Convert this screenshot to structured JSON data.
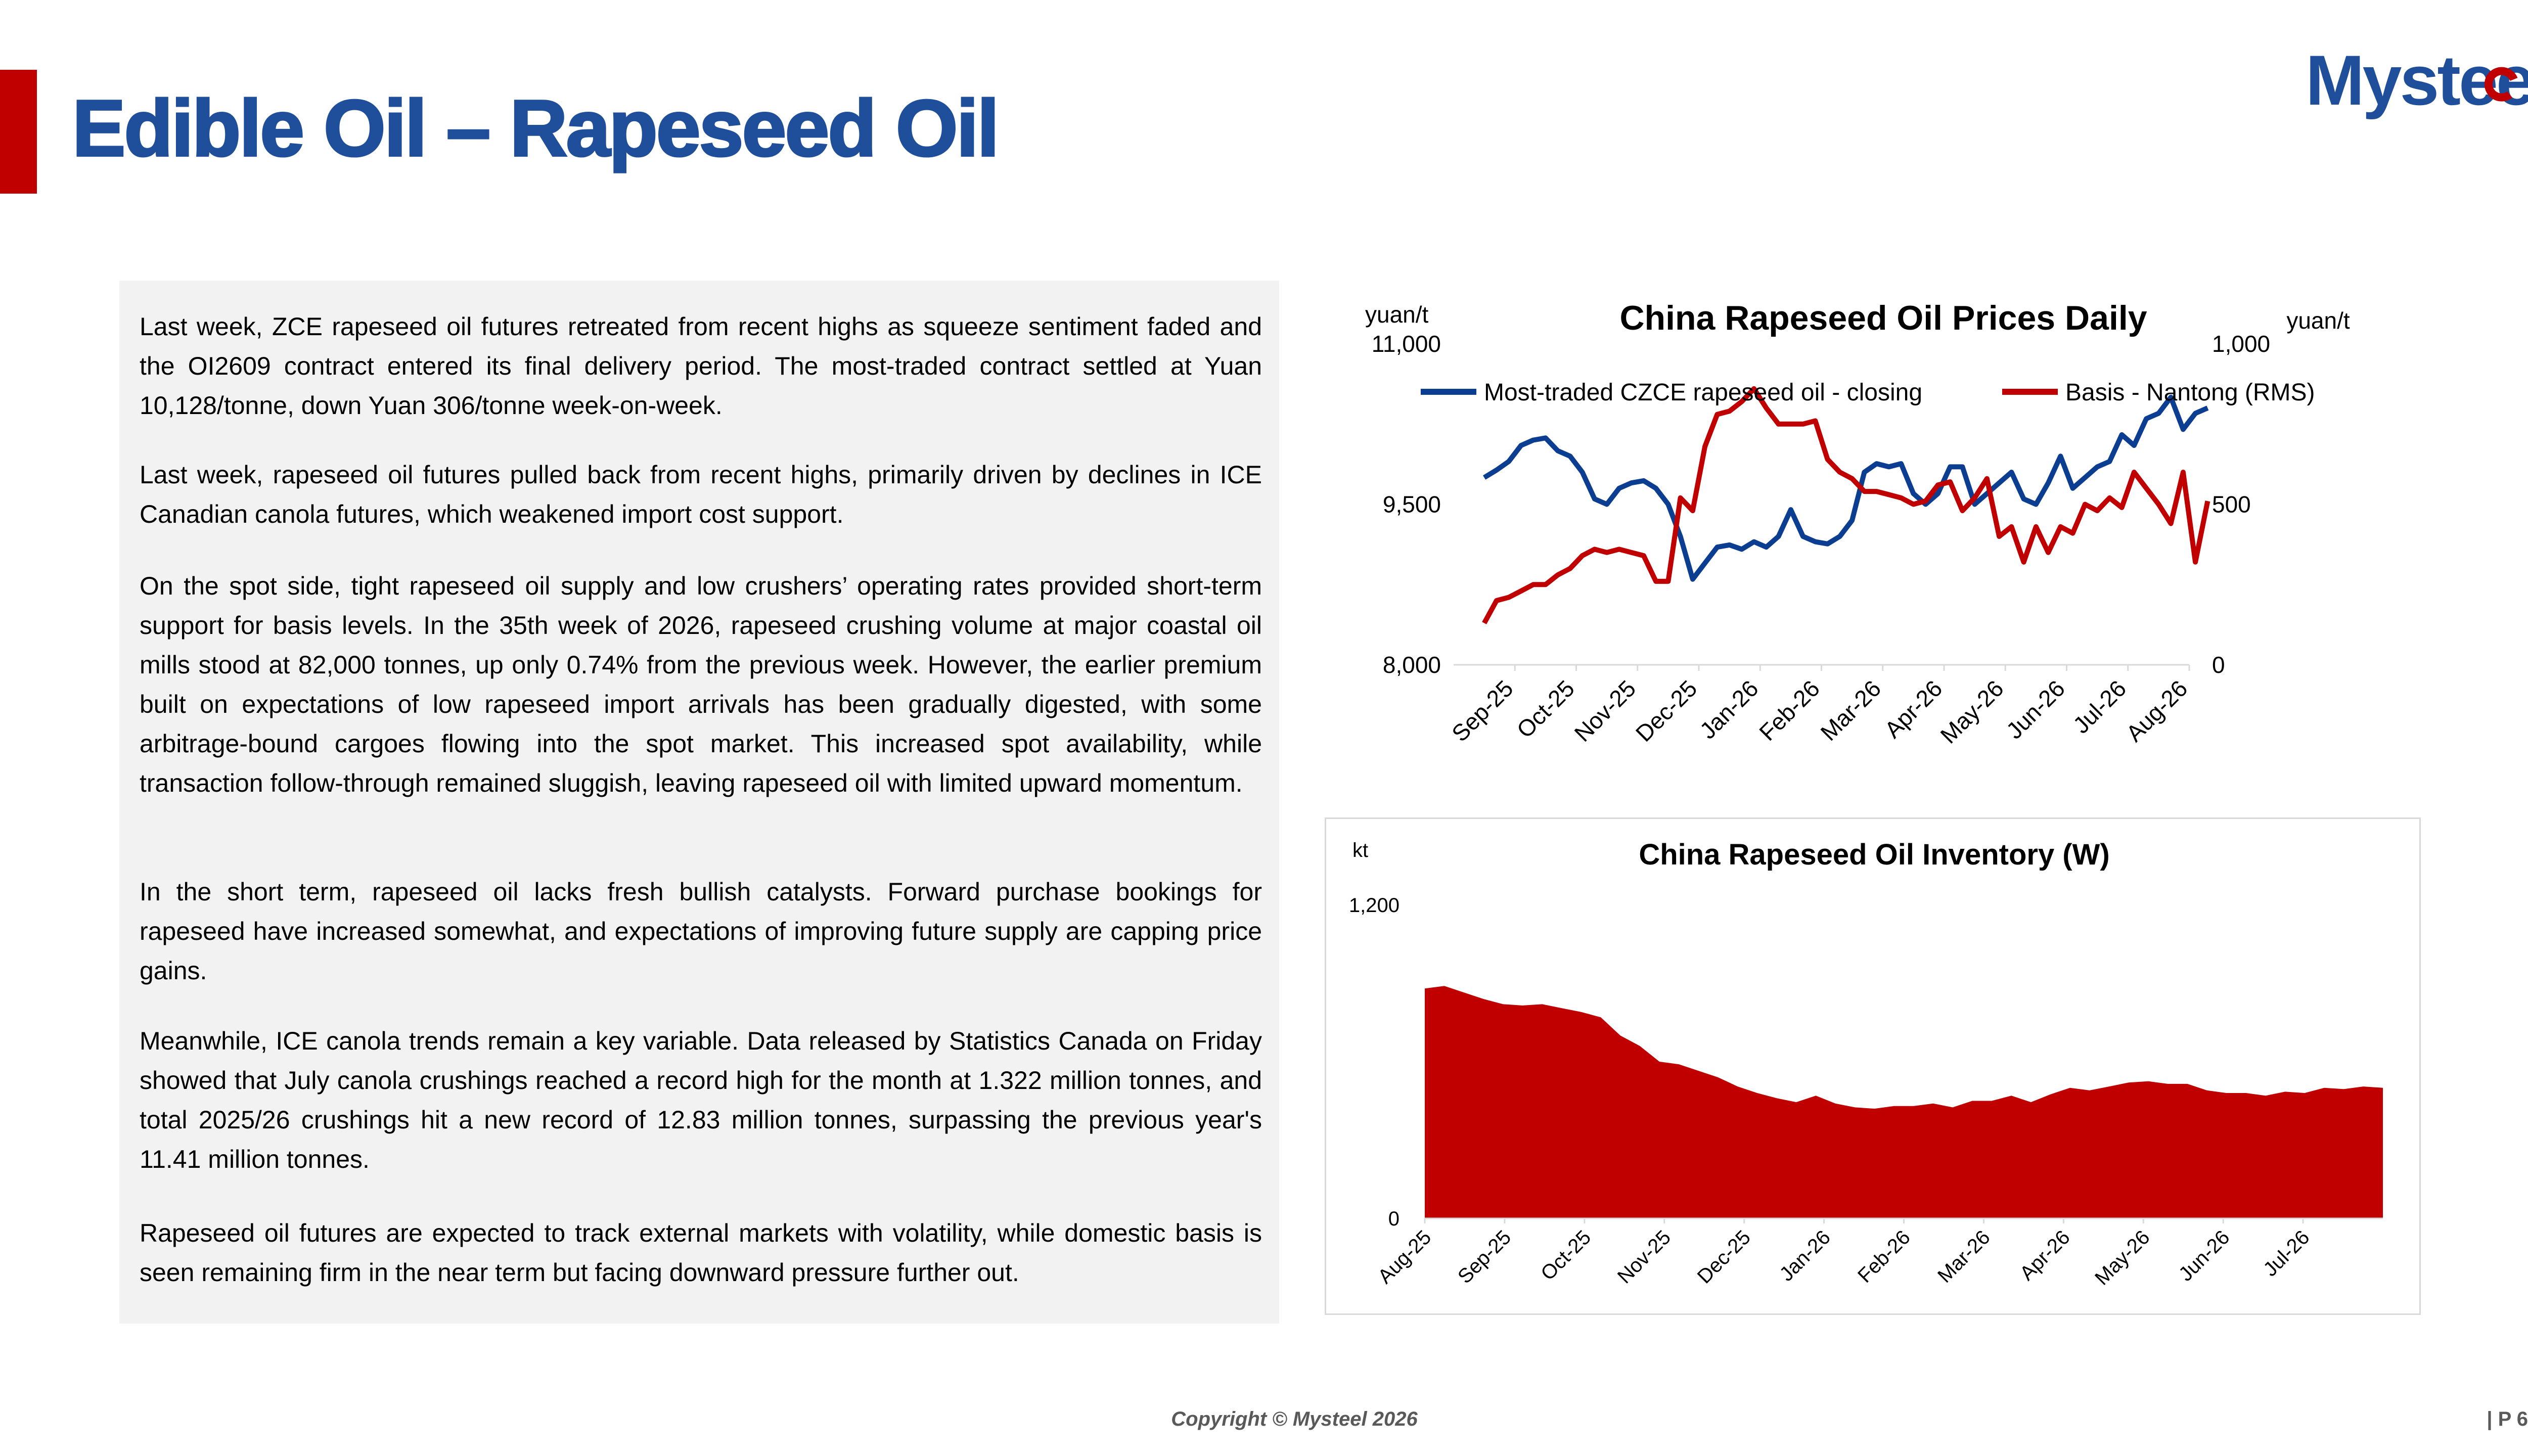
{
  "slide": {
    "title": "Edible Oil – Rapeseed Oil",
    "logo_text": "Mysteel",
    "copyright": "Copyright © Mysteel 2026",
    "page_number": "| P 6"
  },
  "paragraphs": [
    "Last week, ZCE rapeseed oil futures retreated from recent highs as squeeze sentiment faded and the OI2609 contract entered its final delivery period. The most-traded contract settled at Yuan 10,128/tonne, down Yuan 306/tonne week-on-week.",
    "Last week, rapeseed oil futures pulled back from recent highs, primarily driven by declines in ICE Canadian canola futures, which weakened import cost support.",
    "On the spot side, tight rapeseed oil supply and low crushers’ operating rates provided short-term support for basis levels. In the 35th week of 2026, rapeseed crushing volume at major coastal oil mills stood at 82,000 tonnes, up only 0.74% from the previous week. However, the earlier premium built on expectations of low rapeseed import arrivals has been gradually digested, with some arbitrage-bound cargoes flowing into the spot market. This increased spot availability, while transaction follow-through remained sluggish, leaving rapeseed oil with limited upward momentum.",
    "In the short term, rapeseed oil lacks fresh bullish catalysts. Forward purchase bookings for rapeseed have increased somewhat, and expectations of improving future supply are capping price gains.",
    "Meanwhile, ICE canola trends remain a key variable. Data released by Statistics Canada on Friday showed that July canola crushings reached a record high for the month at 1.322 million tonnes, and total 2025/26 crushings hit a new record of 12.83 million tonnes, surpassing the previous year's 11.41 million tonnes.",
    "Rapeseed oil futures are expected to track external markets with volatility, while domestic basis is seen remaining firm in the near term but facing downward pressure further out."
  ],
  "chart_data": [
    {
      "type": "line",
      "title": "China Rapeseed Oil Prices Daily",
      "ylabel_left": "yuan/t",
      "ylabel_right": "yuan/t",
      "ylim_left": [
        8000,
        11000
      ],
      "yticks_left": [
        "8,000",
        "9,500",
        "11,000"
      ],
      "ylim_right": [
        0,
        1000
      ],
      "yticks_right": [
        "0",
        "500",
        "1,000"
      ],
      "xticks": [
        "Sep-25",
        "Oct-25",
        "Nov-25",
        "Dec-25",
        "Jan-26",
        "Feb-26",
        "Mar-26",
        "Apr-26",
        "May-26",
        "Jun-26",
        "Jul-26",
        "Aug-26"
      ],
      "legend_position": "top",
      "grid": false,
      "series": [
        {
          "name": "Most-traded CZCE rapeseed oil - closing",
          "axis": "left",
          "color": "#0b3d91",
          "x": [
            0.0,
            0.2,
            0.4,
            0.6,
            0.8,
            1.0,
            1.2,
            1.4,
            1.6,
            1.8,
            2.0,
            2.2,
            2.4,
            2.6,
            2.8,
            3.0,
            3.2,
            3.4,
            3.6,
            3.8,
            4.0,
            4.2,
            4.4,
            4.6,
            4.8,
            5.0,
            5.2,
            5.4,
            5.6,
            5.8,
            6.0,
            6.2,
            6.4,
            6.6,
            6.8,
            7.0,
            7.2,
            7.4,
            7.6,
            7.8,
            8.0,
            8.2,
            8.4,
            8.6,
            8.8,
            9.0,
            9.2,
            9.4,
            9.6,
            9.8,
            10.0,
            10.2,
            10.4,
            10.6,
            10.8,
            11.0,
            11.2,
            11.4,
            11.6,
            11.8
          ],
          "values": [
            9750,
            9820,
            9900,
            10050,
            10100,
            10120,
            10000,
            9950,
            9800,
            9550,
            9500,
            9650,
            9700,
            9720,
            9650,
            9500,
            9200,
            8800,
            8950,
            9100,
            9120,
            9080,
            9150,
            9100,
            9200,
            9450,
            9200,
            9150,
            9130,
            9200,
            9350,
            9800,
            9880,
            9850,
            9880,
            9600,
            9500,
            9600,
            9850,
            9850,
            9500,
            9600,
            9700,
            9800,
            9550,
            9500,
            9700,
            9950,
            9650,
            9750,
            9850,
            9900,
            10150,
            10050,
            10300,
            10350,
            10500,
            10200,
            10350,
            10400
          ]
        },
        {
          "name": "Basis - Nantong (RMS)",
          "axis": "right",
          "color": "#c00000",
          "x": [
            0.0,
            0.2,
            0.4,
            0.6,
            0.8,
            1.0,
            1.2,
            1.4,
            1.6,
            1.8,
            2.0,
            2.2,
            2.4,
            2.6,
            2.8,
            3.0,
            3.2,
            3.4,
            3.6,
            3.8,
            4.0,
            4.2,
            4.4,
            4.6,
            4.8,
            5.0,
            5.2,
            5.4,
            5.6,
            5.8,
            6.0,
            6.2,
            6.4,
            6.6,
            6.8,
            7.0,
            7.2,
            7.4,
            7.6,
            7.8,
            8.0,
            8.2,
            8.4,
            8.6,
            8.8,
            9.0,
            9.2,
            9.4,
            9.6,
            9.8,
            10.0,
            10.2,
            10.4,
            10.6,
            10.8,
            11.0,
            11.2,
            11.4,
            11.6,
            11.8
          ],
          "values": [
            130,
            200,
            210,
            230,
            250,
            250,
            280,
            300,
            340,
            360,
            350,
            360,
            350,
            340,
            260,
            260,
            520,
            480,
            680,
            780,
            790,
            820,
            860,
            800,
            750,
            750,
            750,
            760,
            640,
            600,
            580,
            540,
            540,
            530,
            520,
            500,
            510,
            560,
            570,
            480,
            520,
            580,
            400,
            430,
            320,
            430,
            350,
            430,
            410,
            500,
            480,
            520,
            490,
            600,
            550,
            500,
            440,
            600,
            320,
            510
          ]
        }
      ]
    },
    {
      "type": "area",
      "title": "China Rapeseed Oil Inventory (W)",
      "ylabel": "kt",
      "ylim": [
        0,
        1200
      ],
      "yticks": [
        "0",
        "1,200"
      ],
      "xticks": [
        "Aug-25",
        "Sep-25",
        "Oct-25",
        "Nov-25",
        "Dec-25",
        "Jan-26",
        "Feb-26",
        "Mar-26",
        "Apr-26",
        "May-26",
        "Jun-26",
        "Jul-26"
      ],
      "grid": false,
      "series": [
        {
          "name": "",
          "color": "#c00000",
          "x": [
            0.0,
            0.25,
            0.5,
            0.75,
            1.0,
            1.25,
            1.5,
            1.75,
            2.0,
            2.25,
            2.5,
            2.75,
            3.0,
            3.25,
            3.5,
            3.75,
            4.0,
            4.25,
            4.5,
            4.75,
            5.0,
            5.25,
            5.5,
            5.75,
            6.0,
            6.25,
            6.5,
            6.75,
            7.0,
            7.25,
            7.5,
            7.75,
            8.0,
            8.25,
            8.5,
            8.75,
            9.0,
            9.25,
            9.5,
            9.75,
            10.0,
            10.25,
            10.5,
            10.75,
            11.0,
            11.25,
            11.5,
            11.75,
            12.0,
            12.25
          ],
          "values": [
            880,
            890,
            865,
            840,
            820,
            815,
            820,
            805,
            790,
            770,
            700,
            660,
            600,
            590,
            565,
            540,
            505,
            480,
            460,
            445,
            470,
            440,
            425,
            420,
            430,
            430,
            440,
            425,
            450,
            450,
            470,
            445,
            475,
            500,
            490,
            505,
            520,
            525,
            515,
            515,
            490,
            480,
            480,
            470,
            485,
            480,
            500,
            495,
            505,
            500
          ]
        }
      ]
    }
  ]
}
